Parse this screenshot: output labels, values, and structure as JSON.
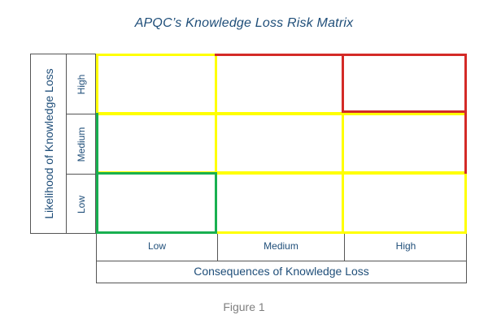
{
  "title": "APQC’s Knowledge Loss Risk Matrix",
  "y_axis": {
    "label": "Likelihood of Knowledge Loss",
    "levels": [
      "High",
      "Medium",
      "Low"
    ]
  },
  "x_axis": {
    "label": "Consequences of Knowledge Loss",
    "levels": [
      "Low",
      "Medium",
      "High"
    ]
  },
  "matrix": {
    "row_high": [
      "yellow",
      "red",
      "red"
    ],
    "row_medium": [
      "green",
      "yellow",
      "yellow"
    ],
    "row_low": [
      "green",
      "yellow",
      "yellow"
    ]
  },
  "colors": {
    "yellow": "#ffff00",
    "red": "#d42a27",
    "green": "#18b050",
    "text": "#1f4e79"
  },
  "caption": "Figure 1"
}
